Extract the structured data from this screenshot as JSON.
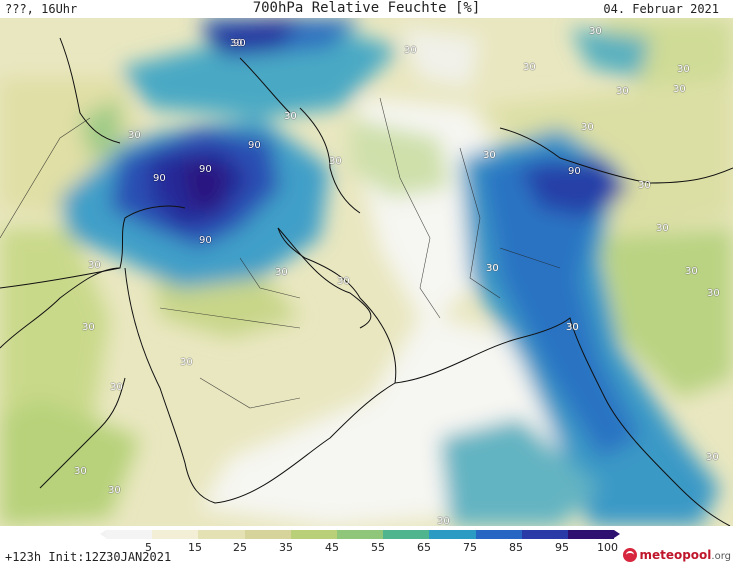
{
  "header": {
    "left": "???, 16Uhr",
    "title": "700hPa Relative Feuchte [%]",
    "date": "04. Februar 2021"
  },
  "footer": {
    "forecast": "+123h  Init:12Z30JAN2021",
    "logo_name": "meteopool",
    "logo_tld": ".org"
  },
  "legend": {
    "ticks": [
      "5",
      "15",
      "25",
      "35",
      "45",
      "55",
      "65",
      "75",
      "85",
      "95",
      "100"
    ],
    "colors": [
      "#f4f4f4",
      "#f2efd6",
      "#e4e2b4",
      "#d6d49a",
      "#b9cf78",
      "#8fc67a",
      "#4fb58e",
      "#2b9bc4",
      "#2866c4",
      "#2a3ba8",
      "#2e1070"
    ]
  },
  "contour_labels": [
    "30",
    "30",
    "30",
    "30",
    "30",
    "30",
    "30",
    "30",
    "30",
    "30",
    "30",
    "30",
    "30",
    "30",
    "30",
    "30",
    "30",
    "30",
    "30",
    "30",
    "30",
    "30",
    "30",
    "30",
    "30",
    "30",
    "30",
    "30",
    "90",
    "90",
    "90",
    "90",
    "90",
    "90"
  ]
}
